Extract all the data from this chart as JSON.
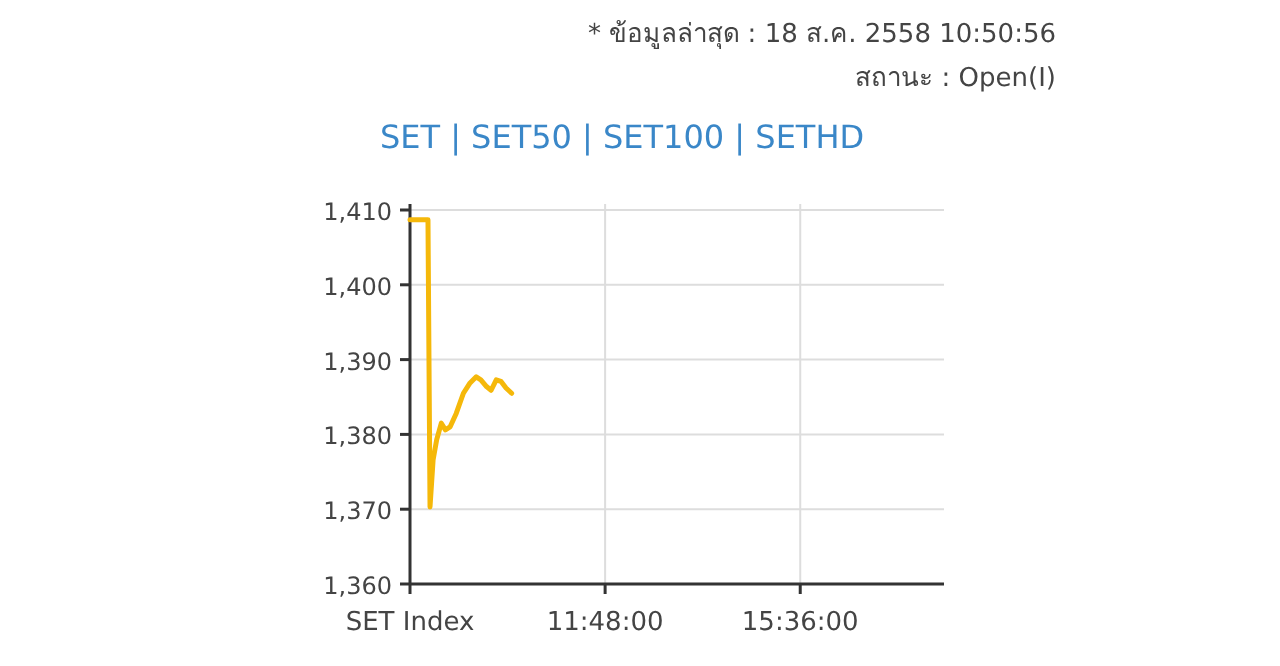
{
  "chart_data": {
    "type": "line",
    "title": "SET | SET50 | SET100 | SETHD",
    "annotations": [
      "* ข้อมูลล่าสุด : 18 ส.ค. 2558 10:50:56",
      "สถานะ : Open(I)"
    ],
    "x": [
      8.0,
      8.35,
      8.39,
      8.45,
      8.52,
      8.61,
      8.69,
      8.78,
      8.9,
      9.04,
      9.16,
      9.29,
      9.38,
      9.49,
      9.58,
      9.68,
      9.77,
      9.87,
      9.98
    ],
    "series": [
      {
        "color": "#f5b80a",
        "values": [
          1408.7,
          1408.7,
          1370.3,
          1376.6,
          1379.3,
          1381.5,
          1380.6,
          1381.0,
          1382.8,
          1385.5,
          1386.8,
          1387.7,
          1387.3,
          1386.4,
          1385.9,
          1387.3,
          1387.1,
          1386.2,
          1385.5
        ]
      }
    ],
    "xlim": [
      8,
      18.4
    ],
    "xticks": [
      {
        "value": 8,
        "label": "SET Index"
      },
      {
        "value": 11.8,
        "label": "11:48:00"
      },
      {
        "value": 15.6,
        "label": "15:36:00"
      }
    ],
    "ylim": [
      1360,
      1410
    ],
    "yticks": [
      {
        "value": 1360,
        "label": "1,360"
      },
      {
        "value": 1370,
        "label": "1,370"
      },
      {
        "value": 1380,
        "label": "1,380"
      },
      {
        "value": 1390,
        "label": "1,390"
      },
      {
        "value": 1400,
        "label": "1,400"
      },
      {
        "value": 1410,
        "label": "1,410"
      }
    ],
    "grid": true,
    "marker": "none",
    "line_style": "solid"
  }
}
